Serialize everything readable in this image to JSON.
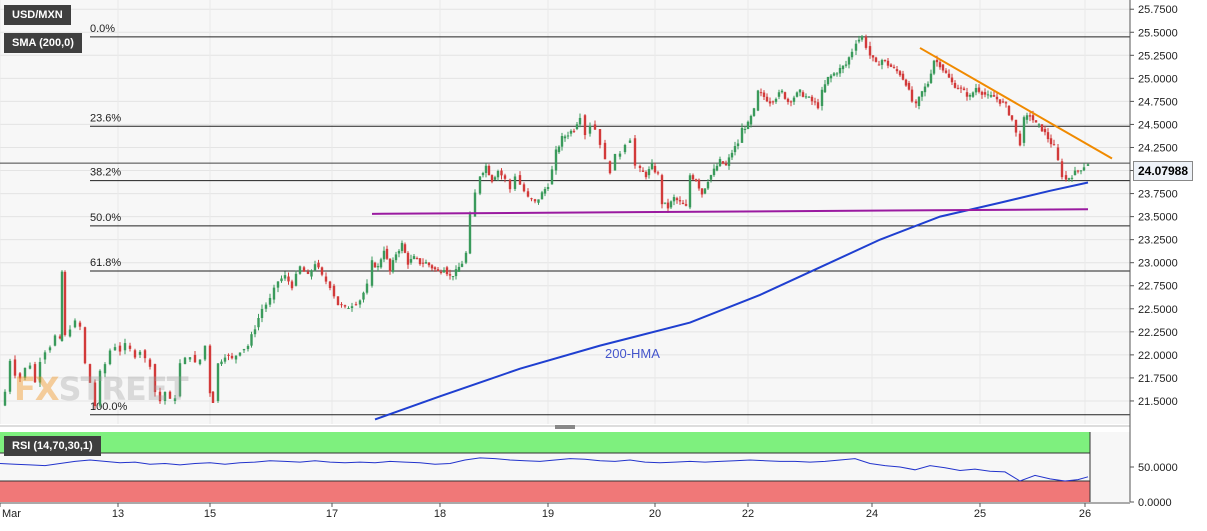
{
  "symbol": "USD/MXN",
  "sma_label": "SMA (200,0)",
  "rsi_label": "RSI (14,70,30,1)",
  "current_price": "24.07988",
  "hma_label": "200-HMA",
  "watermark": {
    "part1": "FX",
    "part2": "STREET"
  },
  "colors": {
    "bull_candle": "#3a9a5b",
    "bear_candle": "#d23a3a",
    "hma_line": "#1f3fd0",
    "trendline_down": "#f08a00",
    "support_line": "#9a1aa0",
    "rsi_line": "#2233cc",
    "rsi_overbought_zone": "#7ef07e",
    "rsi_oversold_zone": "#f07878"
  },
  "chart_data": {
    "type": "candlestick",
    "title": "USD/MXN",
    "ylim": [
      21.25,
      25.85
    ],
    "x_tick_labels": [
      "Mar",
      "13",
      "15",
      "17",
      "18",
      "19",
      "20",
      "22",
      "24",
      "25",
      "26"
    ],
    "y_tick_labels": [
      "25.7500",
      "25.5000",
      "25.2500",
      "25.0000",
      "24.7500",
      "24.5000",
      "24.2500",
      "24.0000",
      "23.7500",
      "23.5000",
      "23.2500",
      "23.0000",
      "22.7500",
      "22.5000",
      "22.2500",
      "22.0000",
      "21.7500",
      "21.5000"
    ],
    "fibonacci_levels": [
      {
        "label": "0.0%",
        "price": 25.45
      },
      {
        "label": "23.6%",
        "price": 24.48
      },
      {
        "label": "38.2%",
        "price": 23.89
      },
      {
        "label": "50.0%",
        "price": 23.4
      },
      {
        "label": "61.8%",
        "price": 22.91
      },
      {
        "label": "100.0%",
        "price": 21.35
      }
    ],
    "current_price": 24.07988,
    "price_path": [
      [
        0,
        21.45
      ],
      [
        5,
        21.6
      ],
      [
        10,
        21.95
      ],
      [
        15,
        21.8
      ],
      [
        20,
        21.75
      ],
      [
        25,
        21.85
      ],
      [
        30,
        21.9
      ],
      [
        35,
        21.7
      ],
      [
        40,
        21.95
      ],
      [
        45,
        22.05
      ],
      [
        50,
        22.1
      ],
      [
        55,
        22.2
      ],
      [
        60,
        22.15
      ],
      [
        62,
        22.9
      ],
      [
        65,
        22.2
      ],
      [
        70,
        22.3
      ],
      [
        75,
        22.35
      ],
      [
        80,
        22.3
      ],
      [
        85,
        21.9
      ],
      [
        90,
        21.7
      ],
      [
        95,
        21.45
      ],
      [
        100,
        21.8
      ],
      [
        105,
        21.9
      ],
      [
        110,
        22.05
      ],
      [
        115,
        22.1
      ],
      [
        120,
        22.05
      ],
      [
        125,
        22.1
      ],
      [
        130,
        22.05
      ],
      [
        135,
        22.0
      ],
      [
        140,
        22.05
      ],
      [
        145,
        21.95
      ],
      [
        150,
        21.9
      ],
      [
        155,
        21.6
      ],
      [
        160,
        21.5
      ],
      [
        165,
        21.6
      ],
      [
        170,
        21.5
      ],
      [
        175,
        21.55
      ],
      [
        180,
        21.9
      ],
      [
        185,
        21.95
      ],
      [
        190,
        22.0
      ],
      [
        195,
        21.9
      ],
      [
        200,
        21.95
      ],
      [
        205,
        22.1
      ],
      [
        210,
        21.6
      ],
      [
        213,
        21.5
      ],
      [
        218,
        21.9
      ],
      [
        225,
        22.0
      ],
      [
        232,
        21.95
      ],
      [
        240,
        22.05
      ],
      [
        248,
        22.1
      ],
      [
        255,
        22.3
      ],
      [
        262,
        22.5
      ],
      [
        270,
        22.6
      ],
      [
        278,
        22.8
      ],
      [
        285,
        22.85
      ],
      [
        292,
        22.75
      ],
      [
        300,
        22.95
      ],
      [
        308,
        22.85
      ],
      [
        315,
        23.0
      ],
      [
        322,
        22.85
      ],
      [
        330,
        22.75
      ],
      [
        338,
        22.55
      ],
      [
        345,
        22.5
      ],
      [
        352,
        22.55
      ],
      [
        360,
        22.6
      ],
      [
        367,
        22.75
      ],
      [
        372,
        23.0
      ],
      [
        378,
        22.95
      ],
      [
        384,
        23.15
      ],
      [
        390,
        22.9
      ],
      [
        396,
        23.1
      ],
      [
        402,
        23.2
      ],
      [
        408,
        23.0
      ],
      [
        414,
        23.05
      ],
      [
        420,
        23.0
      ],
      [
        426,
        23.0
      ],
      [
        432,
        22.95
      ],
      [
        438,
        22.9
      ],
      [
        444,
        22.95
      ],
      [
        450,
        22.85
      ],
      [
        456,
        22.9
      ],
      [
        462,
        23.0
      ],
      [
        466,
        23.1
      ],
      [
        470,
        23.5
      ],
      [
        475,
        23.75
      ],
      [
        480,
        23.95
      ],
      [
        486,
        24.05
      ],
      [
        492,
        23.9
      ],
      [
        498,
        24.0
      ],
      [
        505,
        23.9
      ],
      [
        510,
        23.8
      ],
      [
        515,
        23.95
      ],
      [
        520,
        23.85
      ],
      [
        528,
        23.7
      ],
      [
        535,
        23.65
      ],
      [
        542,
        23.75
      ],
      [
        548,
        23.85
      ],
      [
        552,
        24.0
      ],
      [
        556,
        24.2
      ],
      [
        562,
        24.35
      ],
      [
        568,
        24.4
      ],
      [
        574,
        24.45
      ],
      [
        580,
        24.6
      ],
      [
        585,
        24.4
      ],
      [
        590,
        24.5
      ],
      [
        595,
        24.45
      ],
      [
        600,
        24.3
      ],
      [
        605,
        24.1
      ],
      [
        610,
        24.0
      ],
      [
        615,
        24.15
      ],
      [
        620,
        24.2
      ],
      [
        625,
        24.3
      ],
      [
        630,
        24.35
      ],
      [
        635,
        24.05
      ],
      [
        640,
        24.0
      ],
      [
        646,
        23.95
      ],
      [
        652,
        24.05
      ],
      [
        658,
        23.95
      ],
      [
        662,
        23.65
      ],
      [
        668,
        23.6
      ],
      [
        674,
        23.7
      ],
      [
        680,
        23.65
      ],
      [
        686,
        23.6
      ],
      [
        690,
        23.95
      ],
      [
        696,
        23.9
      ],
      [
        702,
        23.75
      ],
      [
        708,
        23.9
      ],
      [
        714,
        24.0
      ],
      [
        720,
        24.1
      ],
      [
        726,
        24.05
      ],
      [
        732,
        24.2
      ],
      [
        738,
        24.3
      ],
      [
        742,
        24.45
      ],
      [
        748,
        24.5
      ],
      [
        754,
        24.65
      ],
      [
        758,
        24.85
      ],
      [
        764,
        24.8
      ],
      [
        770,
        24.75
      ],
      [
        776,
        24.8
      ],
      [
        782,
        24.85
      ],
      [
        788,
        24.75
      ],
      [
        794,
        24.8
      ],
      [
        800,
        24.85
      ],
      [
        806,
        24.8
      ],
      [
        812,
        24.75
      ],
      [
        818,
        24.7
      ],
      [
        822,
        24.85
      ],
      [
        828,
        25.0
      ],
      [
        834,
        25.05
      ],
      [
        840,
        25.1
      ],
      [
        846,
        25.15
      ],
      [
        852,
        25.3
      ],
      [
        856,
        25.4
      ],
      [
        862,
        25.45
      ],
      [
        866,
        25.35
      ],
      [
        870,
        25.25
      ],
      [
        876,
        25.15
      ],
      [
        882,
        25.2
      ],
      [
        888,
        25.15
      ],
      [
        894,
        25.1
      ],
      [
        900,
        25.05
      ],
      [
        906,
        24.95
      ],
      [
        912,
        24.75
      ],
      [
        916,
        24.7
      ],
      [
        922,
        24.85
      ],
      [
        928,
        24.95
      ],
      [
        934,
        25.2
      ],
      [
        940,
        25.15
      ],
      [
        946,
        25.05
      ],
      [
        952,
        24.95
      ],
      [
        958,
        24.9
      ],
      [
        964,
        24.85
      ],
      [
        970,
        24.8
      ],
      [
        976,
        24.9
      ],
      [
        982,
        24.85
      ],
      [
        988,
        24.8
      ],
      [
        994,
        24.8
      ],
      [
        1000,
        24.75
      ],
      [
        1006,
        24.7
      ],
      [
        1012,
        24.55
      ],
      [
        1016,
        24.4
      ],
      [
        1020,
        24.3
      ],
      [
        1024,
        24.55
      ],
      [
        1030,
        24.6
      ],
      [
        1036,
        24.5
      ],
      [
        1042,
        24.45
      ],
      [
        1048,
        24.35
      ],
      [
        1054,
        24.25
      ],
      [
        1058,
        24.1
      ],
      [
        1062,
        23.95
      ],
      [
        1066,
        23.9
      ],
      [
        1072,
        23.95
      ],
      [
        1078,
        24.0
      ],
      [
        1084,
        24.05
      ],
      [
        1088,
        24.08
      ]
    ],
    "hma_200": [
      [
        375,
        21.3
      ],
      [
        440,
        21.55
      ],
      [
        520,
        21.85
      ],
      [
        600,
        22.1
      ],
      [
        690,
        22.35
      ],
      [
        760,
        22.65
      ],
      [
        820,
        22.95
      ],
      [
        880,
        23.25
      ],
      [
        940,
        23.5
      ],
      [
        1000,
        23.65
      ],
      [
        1050,
        23.78
      ],
      [
        1088,
        23.87
      ]
    ],
    "support_line": {
      "x1": 372,
      "y1": 23.53,
      "x2": 1088,
      "y2": 23.58
    },
    "trendline": {
      "x1": 920,
      "y1": 25.33,
      "x2": 1112,
      "y2": 24.13
    },
    "rsi": {
      "ylim": [
        0,
        100
      ],
      "tick_labels": [
        "50.0000",
        "0.0000"
      ],
      "overbought": 70,
      "oversold": 30,
      "last_value": 36,
      "series": [
        [
          0,
          55
        ],
        [
          15,
          54
        ],
        [
          30,
          53
        ],
        [
          45,
          52
        ],
        [
          60,
          55
        ],
        [
          75,
          58
        ],
        [
          90,
          60
        ],
        [
          105,
          58
        ],
        [
          120,
          56
        ],
        [
          135,
          57
        ],
        [
          150,
          54
        ],
        [
          165,
          55
        ],
        [
          180,
          53
        ],
        [
          195,
          55
        ],
        [
          210,
          56
        ],
        [
          225,
          54
        ],
        [
          240,
          56
        ],
        [
          255,
          57
        ],
        [
          270,
          59
        ],
        [
          285,
          58
        ],
        [
          300,
          57
        ],
        [
          315,
          59
        ],
        [
          330,
          57
        ],
        [
          345,
          56
        ],
        [
          360,
          57
        ],
        [
          375,
          56
        ],
        [
          390,
          58
        ],
        [
          405,
          57
        ],
        [
          420,
          56
        ],
        [
          435,
          54
        ],
        [
          450,
          55
        ],
        [
          465,
          60
        ],
        [
          480,
          63
        ],
        [
          495,
          62
        ],
        [
          510,
          60
        ],
        [
          525,
          59
        ],
        [
          540,
          58
        ],
        [
          555,
          60
        ],
        [
          570,
          62
        ],
        [
          585,
          61
        ],
        [
          600,
          59
        ],
        [
          615,
          58
        ],
        [
          630,
          60
        ],
        [
          645,
          57
        ],
        [
          660,
          56
        ],
        [
          675,
          57
        ],
        [
          690,
          58
        ],
        [
          705,
          57
        ],
        [
          720,
          58
        ],
        [
          735,
          59
        ],
        [
          750,
          60
        ],
        [
          765,
          59
        ],
        [
          780,
          58
        ],
        [
          795,
          58
        ],
        [
          810,
          57
        ],
        [
          825,
          58
        ],
        [
          840,
          60
        ],
        [
          855,
          62
        ],
        [
          870,
          55
        ],
        [
          885,
          52
        ],
        [
          900,
          50
        ],
        [
          915,
          46
        ],
        [
          930,
          52
        ],
        [
          945,
          49
        ],
        [
          960,
          45
        ],
        [
          975,
          47
        ],
        [
          990,
          44
        ],
        [
          1005,
          43
        ],
        [
          1020,
          30
        ],
        [
          1035,
          38
        ],
        [
          1050,
          33
        ],
        [
          1065,
          30
        ],
        [
          1078,
          32
        ],
        [
          1088,
          36
        ]
      ]
    }
  }
}
